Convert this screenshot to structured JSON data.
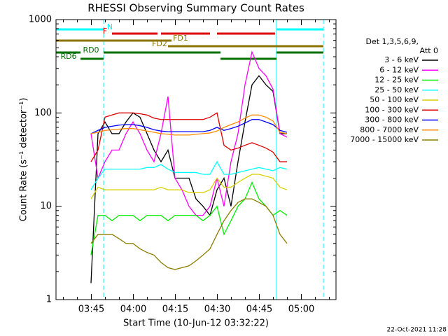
{
  "chart_data": {
    "type": "line",
    "title": "RHESSI Observing Summary Count Rates",
    "xlabel": "Start Time (10-Jun-12 03:32:22)",
    "ylabel": "Count Rate (s⁻¹ detector⁻¹)",
    "legend_title": [
      "Det 1,3,5,6,9,",
      "Att 0"
    ],
    "footer": "22-Oct-2021 11:28",
    "log_y": true,
    "xlim": [
      0,
      100
    ],
    "xticks": [
      {
        "value": 12.63,
        "label": "03:45"
      },
      {
        "value": 27.63,
        "label": "04:00"
      },
      {
        "value": 42.63,
        "label": "04:15"
      },
      {
        "value": 57.63,
        "label": "04:30"
      },
      {
        "value": 72.63,
        "label": "04:45"
      },
      {
        "value": 87.63,
        "label": "05:00"
      }
    ],
    "ylim": [
      1,
      1000
    ],
    "yticks": [
      1,
      10,
      100,
      1000
    ],
    "x": [
      12.5,
      15,
      17.5,
      20,
      22.5,
      25,
      27.5,
      30,
      32.5,
      35,
      37.5,
      40,
      42.5,
      45,
      47.5,
      50,
      52.5,
      55,
      57.5,
      60,
      62.5,
      65,
      67.5,
      70,
      72.5,
      75,
      77.5,
      80,
      82.5
    ],
    "series": [
      {
        "name": "3 - 6 keV",
        "color": "#000000",
        "values": [
          1.5,
          60,
          80,
          60,
          60,
          80,
          100,
          90,
          60,
          40,
          30,
          40,
          20,
          20,
          20,
          12,
          10,
          8,
          15,
          20,
          10,
          30,
          80,
          200,
          250,
          200,
          170,
          60,
          60
        ]
      },
      {
        "name": "6 - 12 keV",
        "color": "#ff00ff",
        "values": [
          60,
          20,
          30,
          40,
          40,
          60,
          80,
          60,
          40,
          30,
          60,
          150,
          20,
          15,
          10,
          8,
          8,
          10,
          20,
          10,
          30,
          60,
          200,
          450,
          300,
          250,
          180,
          60,
          55
        ]
      },
      {
        "name": "12 - 25 keV",
        "color": "#00ee00",
        "values": [
          3,
          8,
          8,
          7,
          8,
          8,
          8,
          7,
          8,
          8,
          8,
          7,
          8,
          8,
          8,
          8,
          7,
          8,
          10,
          5,
          7,
          10,
          12,
          18,
          12,
          10,
          8,
          9,
          8
        ]
      },
      {
        "name": "25 - 50 keV",
        "color": "#00ffff",
        "values": [
          15,
          20,
          25,
          25,
          25,
          25,
          25,
          25,
          26,
          26,
          28,
          25,
          23,
          23,
          23,
          23,
          22,
          22,
          30,
          22,
          22,
          23,
          24,
          25,
          26,
          25,
          24,
          26,
          25
        ]
      },
      {
        "name": "50 - 100 keV",
        "color": "#d8d000",
        "values": [
          12,
          16,
          15,
          15,
          15,
          15,
          15,
          15,
          15,
          15,
          16,
          15,
          15,
          15,
          14,
          14,
          14,
          15,
          20,
          16,
          16,
          18,
          20,
          22,
          22,
          21,
          20,
          16,
          15
        ]
      },
      {
        "name": "100 - 300 keV",
        "color": "#dd0000",
        "values": [
          30,
          40,
          90,
          95,
          100,
          100,
          100,
          98,
          95,
          88,
          85,
          85,
          85,
          85,
          85,
          85,
          85,
          90,
          100,
          45,
          40,
          42,
          45,
          48,
          45,
          42,
          38,
          30,
          30
        ]
      },
      {
        "name": "300 - 800 keV",
        "color": "#0000ff",
        "values": [
          60,
          65,
          70,
          72,
          74,
          75,
          75,
          73,
          70,
          66,
          64,
          63,
          63,
          63,
          63,
          63,
          63,
          65,
          70,
          65,
          68,
          72,
          78,
          85,
          85,
          80,
          75,
          65,
          62
        ]
      },
      {
        "name": "800 - 7000 keV",
        "color": "#ff8c00",
        "values": [
          60,
          62,
          65,
          66,
          67,
          68,
          68,
          66,
          64,
          62,
          60,
          59,
          58,
          58,
          58,
          59,
          60,
          61,
          64,
          70,
          75,
          80,
          88,
          95,
          95,
          90,
          82,
          62,
          60
        ]
      },
      {
        "name": "7000 - 15000 keV",
        "color": "#8b7d00",
        "values": [
          4,
          5,
          5,
          5,
          4.5,
          4,
          4,
          3.5,
          3.2,
          3,
          2.5,
          2.2,
          2.1,
          2.2,
          2.3,
          2.6,
          3,
          3.5,
          5,
          7,
          9,
          11,
          12,
          12,
          11,
          10,
          8,
          5,
          4
        ]
      }
    ],
    "flags": [
      {
        "label": "N",
        "color": "#00ffff",
        "spans": [
          [
            0,
            17
          ],
          [
            78.75,
            95.5
          ]
        ]
      },
      {
        "label": "F",
        "color": "#dd0000",
        "spans": [
          [
            20,
            36.25
          ],
          [
            37.5,
            55
          ],
          [
            57.5,
            78.25
          ]
        ]
      },
      {
        "label": "FD1",
        "color": "#8b7300",
        "spans": [
          [
            0,
            41.25
          ]
        ]
      },
      {
        "label": "FD2",
        "color": "#8b7300",
        "spans": [
          [
            40,
            95.5
          ]
        ]
      },
      {
        "label": "RD0",
        "color": "#007000",
        "spans": [
          [
            0,
            8.75
          ],
          [
            17,
            58.75
          ],
          [
            78.75,
            95.5
          ]
        ]
      },
      {
        "label": "RD6",
        "color": "#007000",
        "spans": [
          [
            8.75,
            17
          ],
          [
            58.75,
            78.75
          ]
        ]
      }
    ],
    "markers": [
      {
        "x": 0,
        "style": "solid"
      },
      {
        "x": 17,
        "style": "dashed"
      },
      {
        "x": 78.75,
        "style": "solid"
      },
      {
        "x": 95.5,
        "style": "dashed"
      }
    ]
  }
}
